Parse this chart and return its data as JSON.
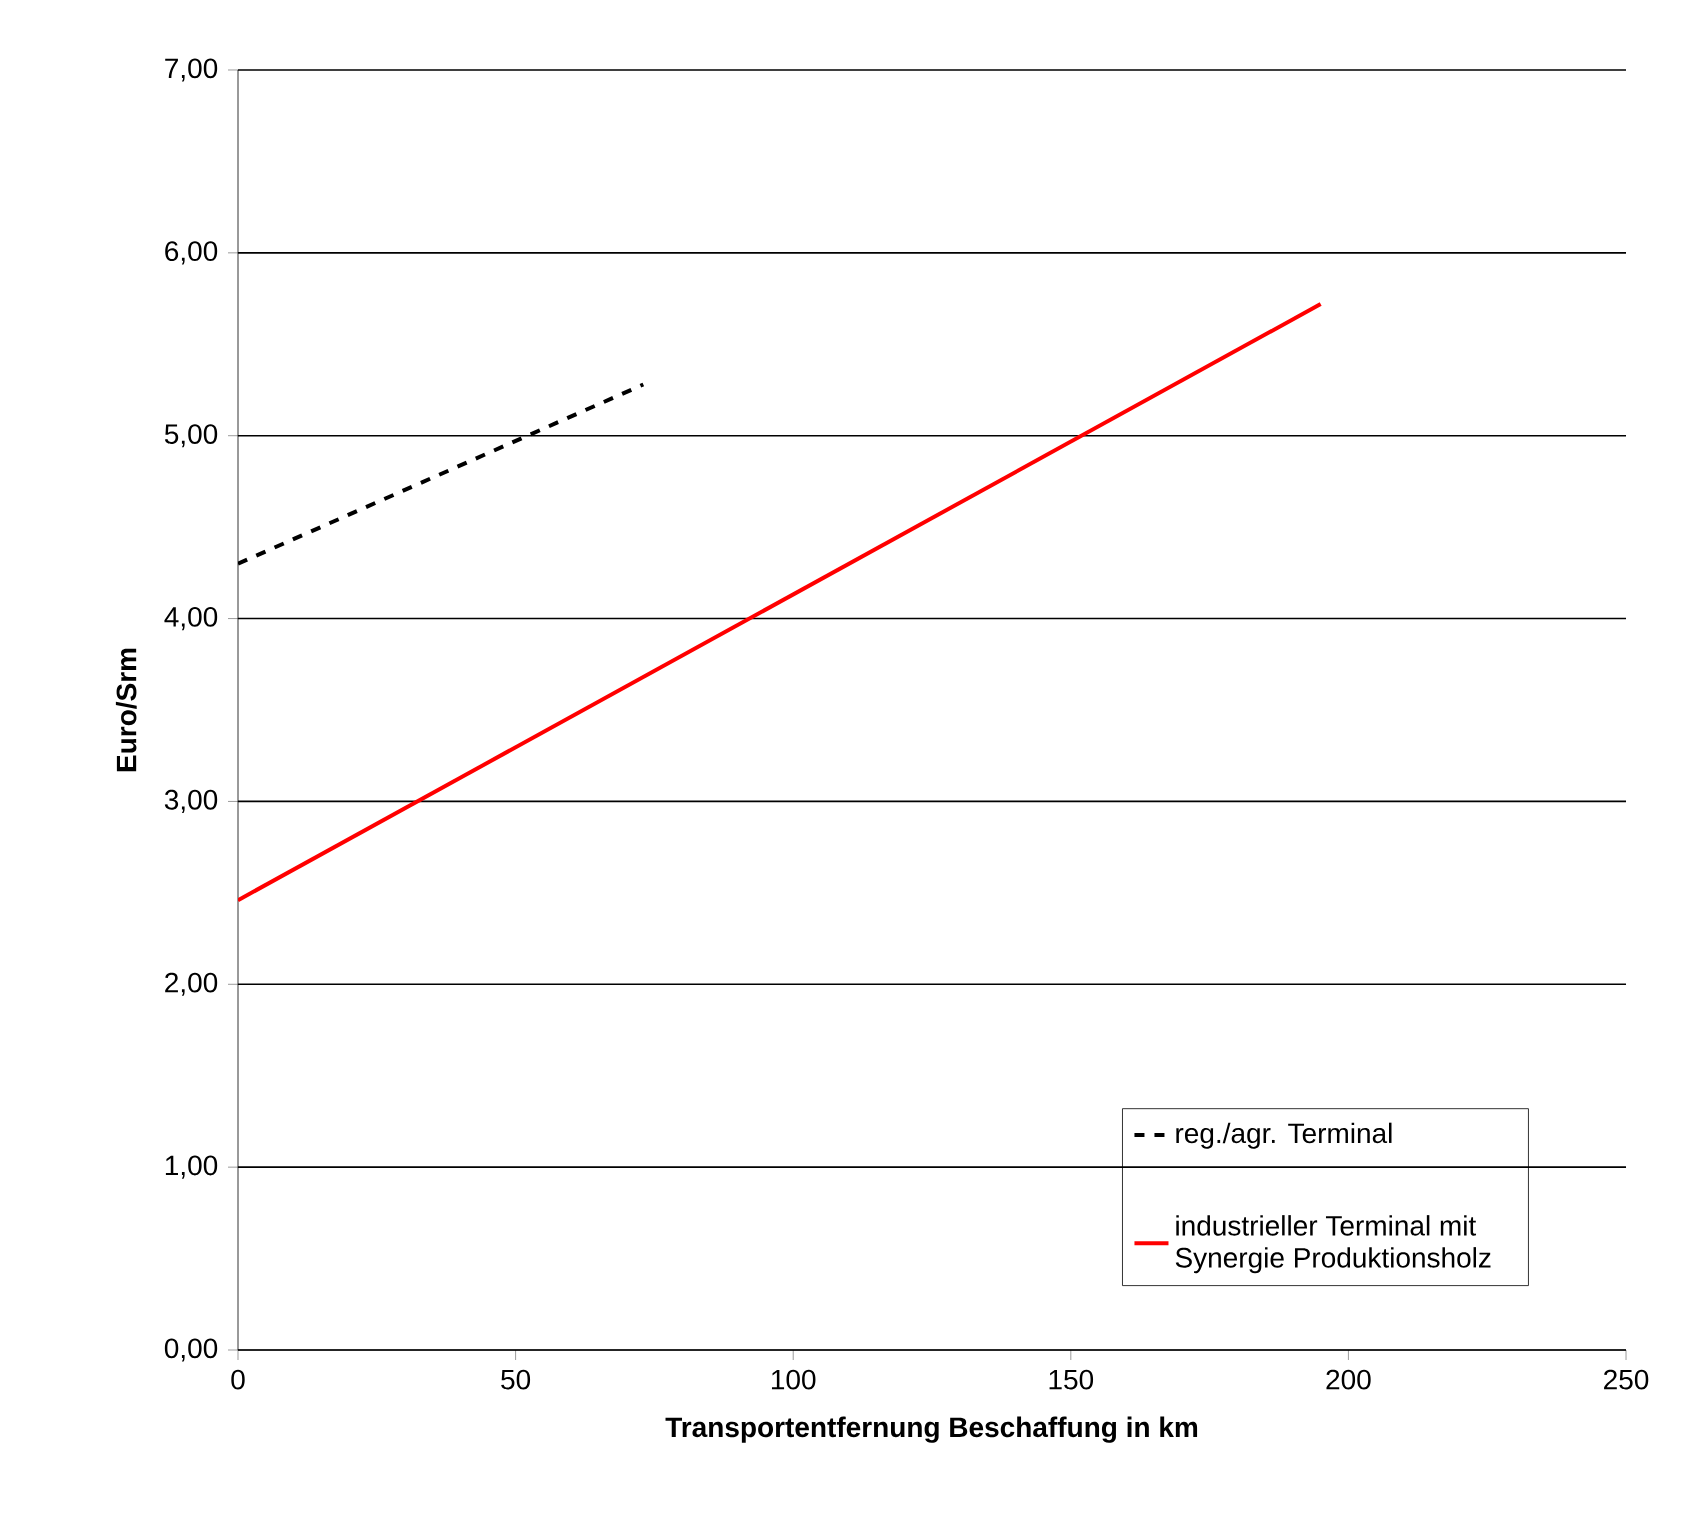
{
  "chart_data": {
    "type": "line",
    "xlabel": "Transportentfernung Beschaffung in km",
    "ylabel": "Euro/Srm",
    "xlim": [
      0,
      250
    ],
    "xticks": [
      0,
      50,
      100,
      150,
      200,
      250
    ],
    "ylim": [
      0,
      7
    ],
    "yticks": [
      {
        "value": 0,
        "label": "0,00"
      },
      {
        "value": 1,
        "label": "1,00"
      },
      {
        "value": 2,
        "label": "2,00"
      },
      {
        "value": 3,
        "label": "3,00"
      },
      {
        "value": 4,
        "label": "4,00"
      },
      {
        "value": 5,
        "label": "5,00"
      },
      {
        "value": 6,
        "label": "6,00"
      },
      {
        "value": 7,
        "label": "7,00"
      }
    ],
    "grid": "y",
    "legend": "bottom right",
    "series": [
      {
        "name": "reg./agr. Terminal",
        "color": "#000000",
        "line_style": "dashed",
        "x": [
          0,
          73
        ],
        "values": [
          4.3,
          5.28
        ]
      },
      {
        "name": "industrieller Terminal mit Synergie Produktionsholz",
        "color": "#ff0000",
        "line_style": "solid",
        "x": [
          0,
          195
        ],
        "values": [
          2.46,
          5.72
        ]
      }
    ]
  }
}
